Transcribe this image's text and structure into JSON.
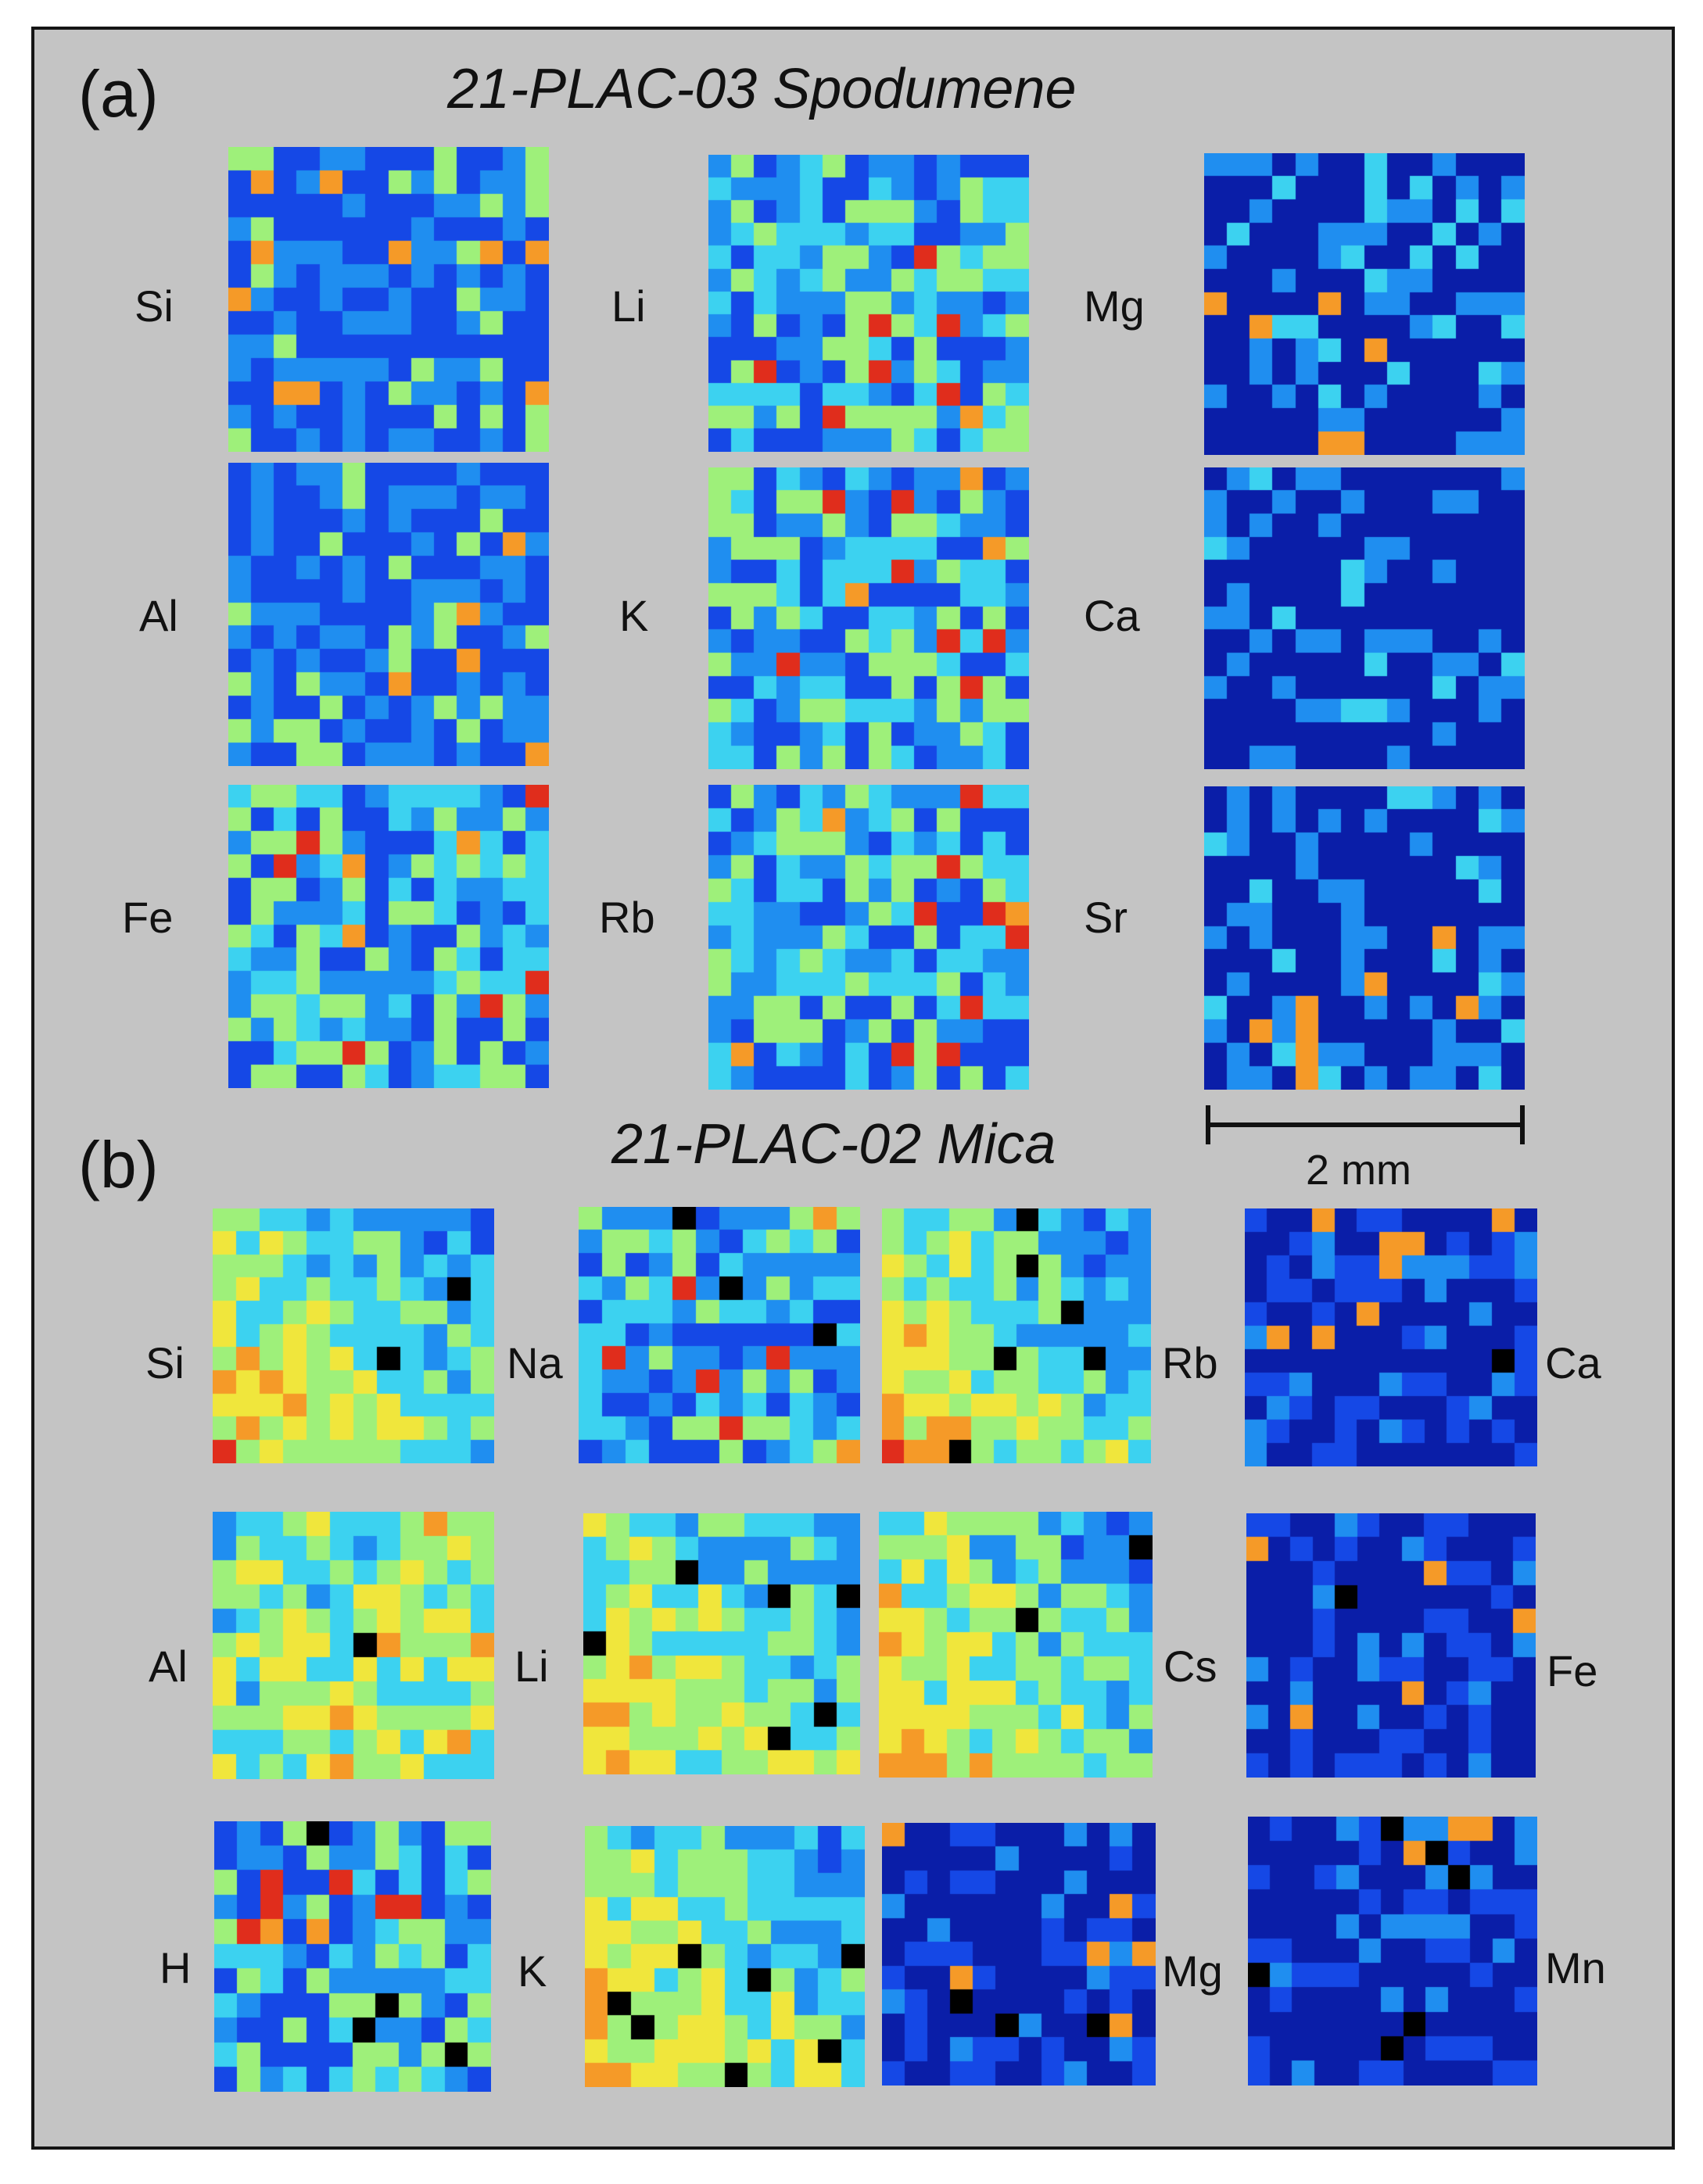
{
  "figure": {
    "panel_a": {
      "label": "(a)",
      "title": "21-PLAC-03 Spodumene",
      "maps": [
        {
          "element": "Si",
          "seed": 11,
          "pattern": "scatter"
        },
        {
          "element": "Li",
          "seed": 12,
          "pattern": "medium"
        },
        {
          "element": "Mg",
          "seed": 13,
          "pattern": "sparse"
        },
        {
          "element": "Al",
          "seed": 14,
          "pattern": "scatter"
        },
        {
          "element": "K",
          "seed": 15,
          "pattern": "medium"
        },
        {
          "element": "Ca",
          "seed": 16,
          "pattern": "sparse"
        },
        {
          "element": "Fe",
          "seed": 17,
          "pattern": "medium"
        },
        {
          "element": "Rb",
          "seed": 18,
          "pattern": "medium"
        },
        {
          "element": "Sr",
          "seed": 19,
          "pattern": "sparse"
        }
      ]
    },
    "scale_bar": {
      "label": "2 mm"
    },
    "panel_b": {
      "label": "(b)",
      "title": "21-PLAC-02 Mica",
      "maps": [
        {
          "element": "Si",
          "seed": 21,
          "pattern": "gradient"
        },
        {
          "element": "Na",
          "seed": 22,
          "pattern": "medium"
        },
        {
          "element": "Rb",
          "seed": 23,
          "pattern": "gradient"
        },
        {
          "element": "Ca",
          "seed": 24,
          "pattern": "low"
        },
        {
          "element": "Al",
          "seed": 25,
          "pattern": "hot"
        },
        {
          "element": "Li",
          "seed": 26,
          "pattern": "gradient"
        },
        {
          "element": "Cs",
          "seed": 27,
          "pattern": "gradient"
        },
        {
          "element": "Fe",
          "seed": 28,
          "pattern": "low"
        },
        {
          "element": "H",
          "seed": 29,
          "pattern": "medium"
        },
        {
          "element": "K",
          "seed": 30,
          "pattern": "gradient"
        },
        {
          "element": "Mg",
          "seed": 31,
          "pattern": "low"
        },
        {
          "element": "Mn",
          "seed": 32,
          "pattern": "low"
        }
      ]
    },
    "colormap": [
      "#0a1ea8",
      "#1548e6",
      "#1f8ef0",
      "#3cd2f0",
      "#9ef07a",
      "#f0e63c",
      "#f59a28",
      "#e02d1c"
    ],
    "missing_pixel_color": "#000000"
  }
}
